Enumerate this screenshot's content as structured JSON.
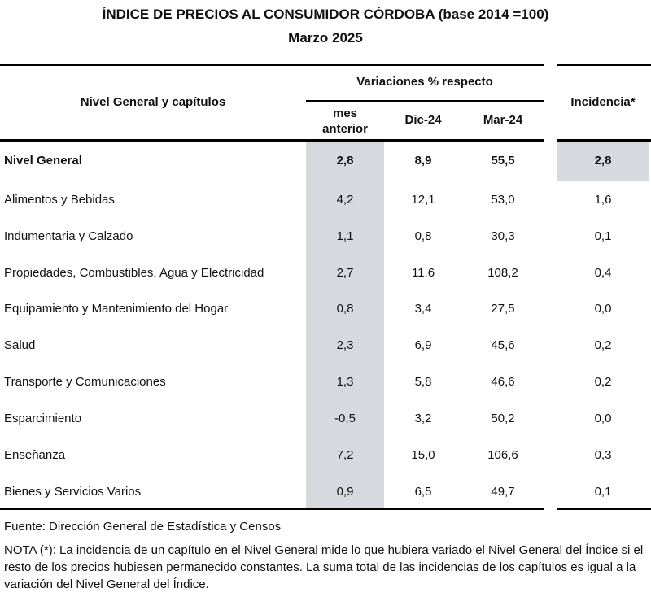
{
  "title": "ÍNDICE DE PRECIOS AL CONSUMIDOR CÓRDOBA (base 2014 =100)",
  "subtitle": "Marzo 2025",
  "header": {
    "row_label": "Nivel General y capítulos",
    "group": "Variaciones % respecto",
    "col1_line1": "mes",
    "col1_line2": "anterior",
    "col2": "Dic-24",
    "col3": "Mar-24",
    "col4": "Incidencia*"
  },
  "rows": [
    {
      "label": "Nivel General",
      "mes": "2,8",
      "dic": "8,9",
      "mar": "55,5",
      "inc": "2,8"
    },
    {
      "label": "Alimentos y Bebidas",
      "mes": "4,2",
      "dic": "12,1",
      "mar": "53,0",
      "inc": "1,6"
    },
    {
      "label": "Indumentaria y Calzado",
      "mes": "1,1",
      "dic": "0,8",
      "mar": "30,3",
      "inc": "0,1"
    },
    {
      "label": "Propiedades, Combustibles, Agua y Electricidad",
      "mes": "2,7",
      "dic": "11,6",
      "mar": "108,2",
      "inc": "0,4"
    },
    {
      "label": "Equipamiento y Mantenimiento del Hogar",
      "mes": "0,8",
      "dic": "3,4",
      "mar": "27,5",
      "inc": "0,0"
    },
    {
      "label": "Salud",
      "mes": "2,3",
      "dic": "6,9",
      "mar": "45,6",
      "inc": "0,2"
    },
    {
      "label": "Transporte y Comunicaciones",
      "mes": "1,3",
      "dic": "5,8",
      "mar": "46,6",
      "inc": "0,2"
    },
    {
      "label": "Esparcimiento",
      "mes": "-0,5",
      "dic": "3,2",
      "mar": "50,2",
      "inc": "0,0"
    },
    {
      "label": "Enseñanza",
      "mes": "7,2",
      "dic": "15,0",
      "mar": "106,6",
      "inc": "0,3"
    },
    {
      "label": "Bienes y Servicios Varios",
      "mes": "0,9",
      "dic": "6,5",
      "mar": "49,7",
      "inc": "0,1"
    }
  ],
  "source": "Fuente: Dirección General de Estadística y Censos",
  "note": "NOTA (*): La incidencia de un capítulo en el Nivel General mide lo que hubiera variado el Nivel General del Índice si el resto de los precios hubiesen permanecido constantes. La suma total de las incidencias de los capítulos es igual a la variación del Nivel General del Índice.",
  "colors": {
    "highlight": "#d6d9dd",
    "rule": "#000000"
  }
}
